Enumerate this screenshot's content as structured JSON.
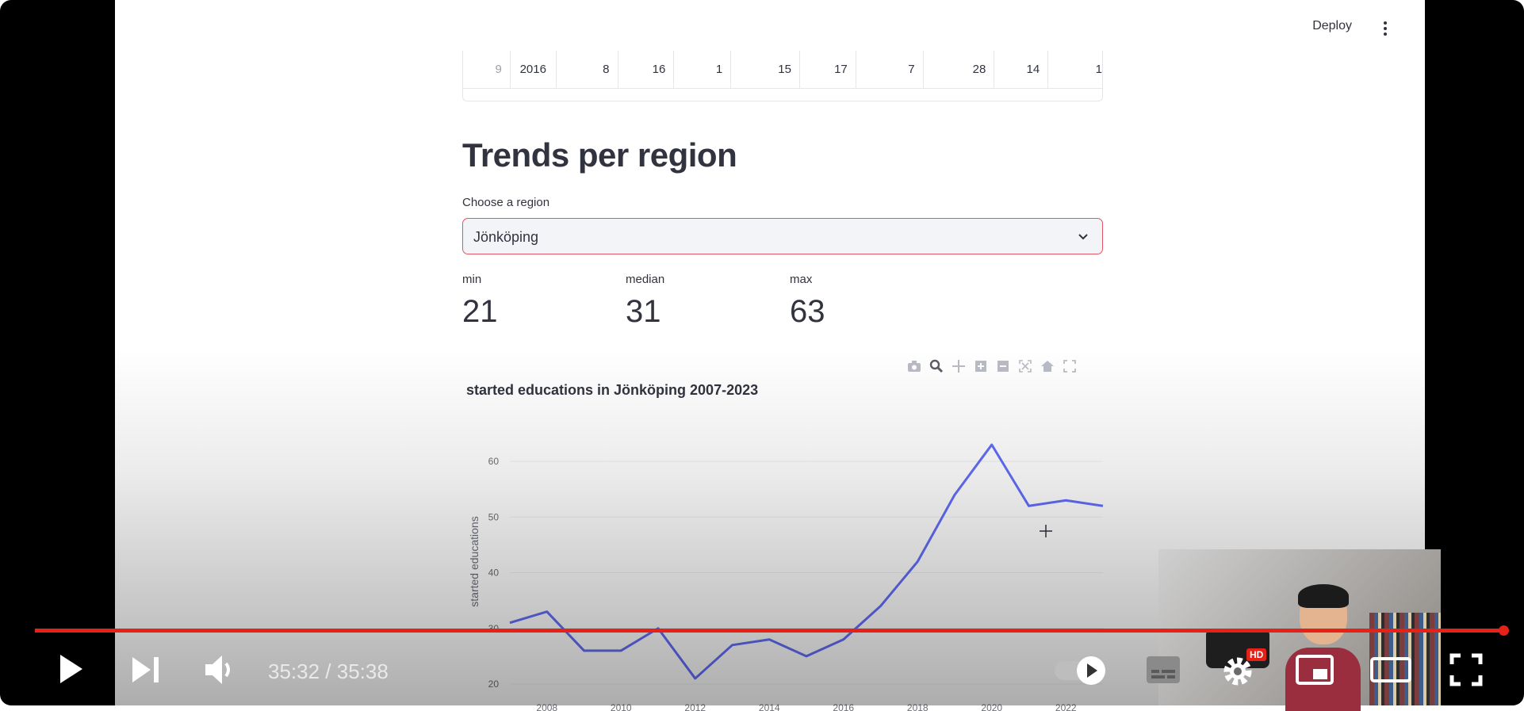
{
  "app": {
    "deploy_label": "Deploy"
  },
  "table": {
    "row": [
      "9",
      "2016",
      "8",
      "16",
      "1",
      "15",
      "17",
      "7",
      "28",
      "14",
      "1"
    ]
  },
  "section": {
    "title": "Trends per region"
  },
  "region_select": {
    "label": "Choose a region",
    "value": "Jönköping"
  },
  "metrics": [
    {
      "label": "min",
      "value": "21"
    },
    {
      "label": "median",
      "value": "31"
    },
    {
      "label": "max",
      "value": "63"
    }
  ],
  "modebar": {
    "icons": [
      "camera-icon",
      "zoom-icon",
      "pan-icon",
      "zoom-in-icon",
      "zoom-out-icon",
      "autoscale-icon",
      "home-icon",
      "fullscreen-icon"
    ]
  },
  "chart_data": {
    "type": "line",
    "title": "started educations in Jönköping 2007-2023",
    "xlabel": "",
    "ylabel": "started educations",
    "x": [
      2007,
      2008,
      2009,
      2010,
      2011,
      2012,
      2013,
      2014,
      2015,
      2016,
      2017,
      2018,
      2019,
      2020,
      2021,
      2022,
      2023
    ],
    "y": [
      31,
      33,
      26,
      26,
      30,
      21,
      27,
      28,
      25,
      28,
      34,
      42,
      54,
      63,
      52,
      53,
      52
    ],
    "x_ticks": [
      "2008",
      "2010",
      "2012",
      "2014",
      "2016",
      "2018",
      "2020",
      "2022"
    ],
    "y_ticks": [
      "20",
      "30",
      "40",
      "50",
      "60"
    ],
    "ylim": [
      18,
      66
    ],
    "line_color": "#636efa"
  },
  "player": {
    "time": "35:32 / 35:38",
    "hd_badge": "HD",
    "progress": 0.997,
    "accent": "#e62117"
  }
}
